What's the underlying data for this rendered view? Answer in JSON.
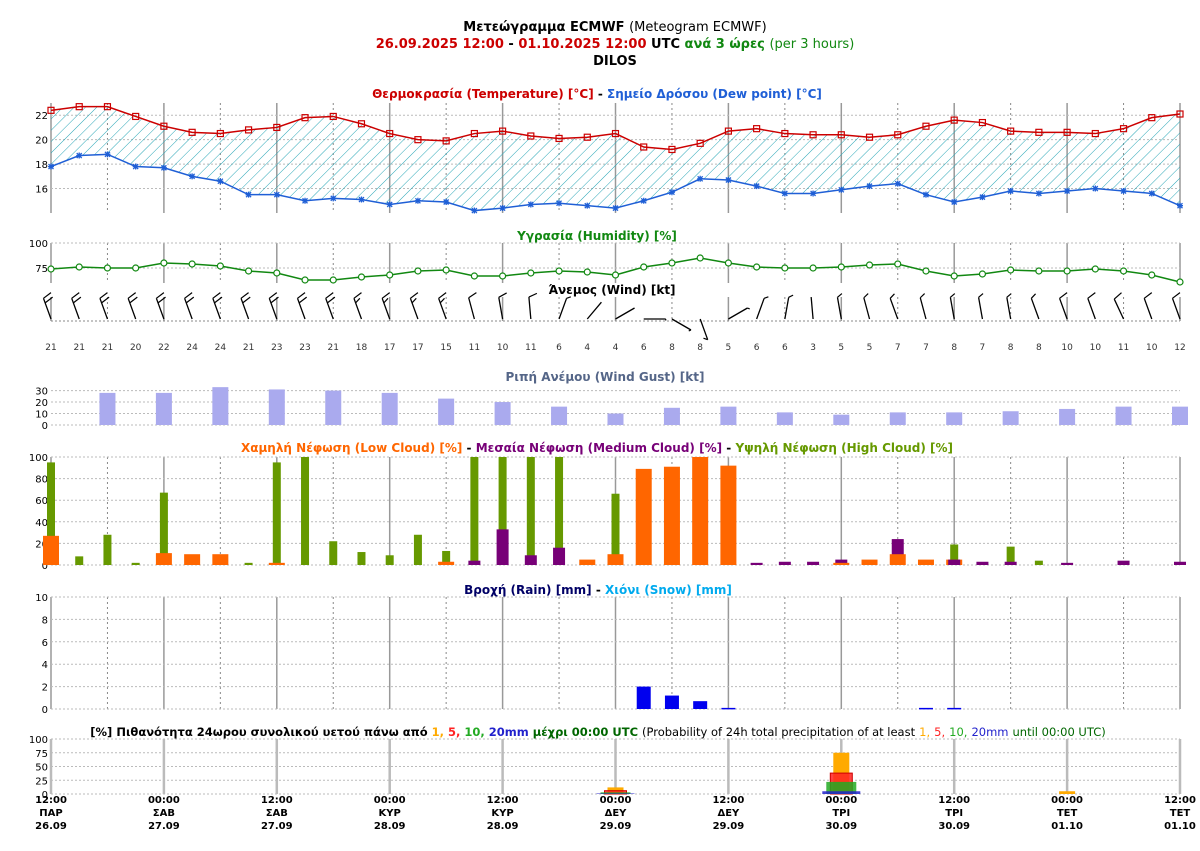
{
  "header": {
    "line1_bold": "Μετεώγραμμα ECMWF",
    "line1_normal": "(Meteogram ECMWF)",
    "line2_start": "26.09.2025 12:00",
    "line2_dash": "-",
    "line2_end": "01.10.2025 12:00",
    "line2_utc": "UTC",
    "line2_every": "ανά 3 ώρες",
    "line2_per": "(per 3 hours)",
    "line3": "DILOS"
  },
  "colors": {
    "temperature": "#cc0000",
    "dewpoint": "#1f5fd6",
    "humidity": "#118811",
    "gust": "#aaaaee",
    "low_cloud": "#ff6600",
    "medium_cloud": "#770077",
    "high_cloud": "#669900",
    "rain": "#0000ee",
    "snow": "#00aaee",
    "p1": "#ffaa00",
    "p5": "#ff2222",
    "p10": "#22aa22",
    "p20": "#2222cc"
  },
  "panels": {
    "temp_title_a": "Θερμοκρασία (Temperature) [°C]",
    "temp_title_sep": "-",
    "temp_title_b": "Σημείο Δρόσου (Dew point) [°C]",
    "hum_title": "Υγρασία (Humidity) [%]",
    "wind_title": "Άνεμος (Wind) [kt]",
    "gust_title": "Ριπή Ανέμου (Wind Gust) [kt]",
    "cloud_title_low": "Χαμηλή Νέφωση (Low Cloud) [%]",
    "cloud_title_sep1": "-",
    "cloud_title_med": "Μεσαία Νέφωση (Medium Cloud) [%]",
    "cloud_title_sep2": "-",
    "cloud_title_high": "Υψηλή Νέφωση (High Cloud) [%]",
    "rain_title_a": "Βροχή (Rain) [mm]",
    "rain_title_sep": "-",
    "rain_title_b": "Χιόνι (Snow) [mm]",
    "prob_title_a": "[%] Πιθανότητα 24ωρου συνολικού υετού πάνω από",
    "prob_v1": "1,",
    "prob_v5": "5,",
    "prob_v10": "10,",
    "prob_v20": "20mm",
    "prob_title_b": "μέχρι 00:00 UTC",
    "prob_title_c": "(Probability of 24h total precipitation of at least",
    "prob_title_d": "until 00:00 UTC)"
  },
  "chart_data": [
    {
      "type": "line",
      "title": "Θερμοκρασία (Temperature) [°C] - Σημείο Δρόσου (Dew point) [°C]",
      "x": [
        "26.09 12:00",
        "26.09 15:00",
        "26.09 18:00",
        "26.09 21:00",
        "27.09 00:00",
        "27.09 03:00",
        "27.09 06:00",
        "27.09 09:00",
        "27.09 12:00",
        "27.09 15:00",
        "27.09 18:00",
        "27.09 21:00",
        "28.09 00:00",
        "28.09 03:00",
        "28.09 06:00",
        "28.09 09:00",
        "28.09 12:00",
        "28.09 15:00",
        "28.09 18:00",
        "28.09 21:00",
        "29.09 00:00",
        "29.09 03:00",
        "29.09 06:00",
        "29.09 09:00",
        "29.09 12:00",
        "29.09 15:00",
        "29.09 18:00",
        "29.09 21:00",
        "30.09 00:00",
        "30.09 03:00",
        "30.09 06:00",
        "30.09 09:00",
        "30.09 12:00",
        "30.09 15:00",
        "30.09 18:00",
        "30.09 21:00",
        "01.10 00:00",
        "01.10 03:00",
        "01.10 06:00",
        "01.10 09:00",
        "01.10 12:00"
      ],
      "series": [
        {
          "name": "Θερμοκρασία (Temperature) [°C]",
          "values": [
            22.4,
            22.7,
            22.7,
            21.9,
            21.1,
            20.6,
            20.5,
            20.8,
            21.0,
            21.8,
            21.9,
            21.3,
            20.5,
            20.0,
            19.9,
            20.5,
            20.7,
            20.3,
            20.1,
            20.2,
            20.5,
            19.4,
            19.2,
            19.7,
            20.7,
            20.9,
            20.5,
            20.4,
            20.4,
            20.2,
            20.4,
            21.1,
            21.6,
            21.4,
            20.7,
            20.6,
            20.6,
            20.5,
            20.9,
            21.8,
            22.1
          ]
        },
        {
          "name": "Σημείο Δρόσου (Dew point) [°C]",
          "values": [
            17.8,
            18.7,
            18.8,
            17.8,
            17.7,
            17.0,
            16.6,
            15.5,
            15.5,
            15.0,
            15.2,
            15.1,
            14.7,
            15.0,
            14.9,
            14.2,
            14.4,
            14.7,
            14.8,
            14.6,
            14.4,
            15.0,
            15.7,
            16.8,
            16.7,
            16.2,
            15.6,
            15.6,
            15.9,
            16.2,
            16.4,
            15.5,
            14.9,
            15.3,
            15.8,
            15.6,
            15.8,
            16.0,
            15.8,
            15.6,
            14.6
          ]
        }
      ],
      "yticks": [
        16,
        18,
        20,
        22
      ],
      "ylim": [
        14,
        23
      ]
    },
    {
      "type": "line",
      "title": "Υγρασία (Humidity) [%]",
      "series": [
        {
          "name": "Υγρασία (Humidity) [%]",
          "values": [
            74,
            76,
            75,
            75,
            80,
            79,
            77,
            72,
            70,
            63,
            63,
            66,
            68,
            72,
            73,
            67,
            67,
            70,
            72,
            71,
            68,
            76,
            80,
            85,
            80,
            76,
            75,
            75,
            76,
            78,
            79,
            72,
            67,
            69,
            73,
            72,
            72,
            74,
            72,
            68,
            61
          ]
        }
      ],
      "yticks": [
        75,
        100
      ],
      "ylim": [
        60,
        100
      ]
    },
    {
      "type": "wind",
      "title": "Άνεμος (Wind) [kt]",
      "speed_labels": [
        "21",
        "21",
        "21",
        "20",
        "22",
        "24",
        "24",
        "21",
        "23",
        "23",
        "21",
        "18",
        "17",
        "17",
        "15",
        "11",
        "10",
        "11",
        "6",
        "4",
        "4",
        "6",
        "8",
        "8",
        "5",
        "6",
        "6",
        "3",
        "5",
        "5",
        "7",
        "7",
        "8",
        "7",
        "8",
        "8",
        "10",
        "10",
        "11",
        "10",
        "12"
      ],
      "direction_deg": [
        340,
        340,
        340,
        340,
        340,
        340,
        340,
        340,
        340,
        340,
        340,
        340,
        340,
        340,
        340,
        345,
        350,
        355,
        20,
        40,
        60,
        90,
        120,
        160,
        60,
        20,
        10,
        355,
        350,
        345,
        340,
        345,
        350,
        350,
        350,
        340,
        340,
        340,
        335,
        340,
        340
      ]
    },
    {
      "type": "bar",
      "title": "Ριπή Ανέμου (Wind Gust) [kt]",
      "values": [
        28,
        28,
        33,
        31,
        30,
        28,
        23,
        20,
        16,
        10,
        15,
        16,
        11,
        9,
        11,
        11,
        12,
        14,
        16,
        16
      ],
      "yticks": [
        0,
        10,
        20,
        30
      ],
      "ylim": [
        0,
        34
      ]
    },
    {
      "type": "bar",
      "title": "Χαμηλή Νέφωση (Low Cloud) [%] - Μεσαία Νέφωση (Medium Cloud) [%] - Υψηλή Νέφωση (High Cloud) [%]",
      "series": [
        {
          "name": "Χαμηλή Νέφωση (Low Cloud) [%]",
          "values": [
            27,
            0,
            0,
            0,
            11,
            10,
            10,
            0,
            2,
            0,
            0,
            0,
            0,
            0,
            3,
            0,
            0,
            0,
            0,
            5,
            10,
            89,
            91,
            100,
            92,
            0,
            0,
            0,
            2,
            5,
            10,
            5,
            5,
            0,
            0,
            0,
            0,
            0,
            0,
            0,
            0
          ]
        },
        {
          "name": "Μεσαία Νέφωση (Medium Cloud) [%]",
          "values": [
            0,
            0,
            0,
            0,
            0,
            0,
            0,
            0,
            0,
            0,
            0,
            0,
            0,
            0,
            0,
            4,
            33,
            9,
            16,
            0,
            0,
            0,
            0,
            0,
            0,
            2,
            3,
            3,
            5,
            0,
            24,
            0,
            5,
            3,
            3,
            0,
            2,
            0,
            4,
            0,
            3
          ]
        },
        {
          "name": "Υψηλή Νέφωση (High Cloud) [%]",
          "values": [
            95,
            8,
            28,
            2,
            67,
            0,
            0,
            2,
            95,
            100,
            22,
            12,
            9,
            28,
            13,
            100,
            100,
            100,
            100,
            0,
            66,
            0,
            0,
            0,
            0,
            0,
            0,
            0,
            0,
            0,
            0,
            0,
            19,
            0,
            17,
            4,
            0,
            0,
            0,
            0,
            0
          ]
        }
      ],
      "yticks": [
        0,
        20,
        40,
        60,
        80,
        100
      ],
      "ylim": [
        0,
        100
      ]
    },
    {
      "type": "bar",
      "title": "Βροχή (Rain) [mm] - Χιόνι (Snow) [mm]",
      "series": [
        {
          "name": "Βροχή (Rain) [mm]",
          "values": [
            0,
            0,
            0,
            0,
            0,
            0,
            0,
            0,
            0,
            0,
            0,
            0,
            0,
            0,
            0,
            0,
            0,
            0,
            0,
            0,
            0,
            2.0,
            1.2,
            0.7,
            0.1,
            0,
            0,
            0,
            0,
            0,
            0,
            0.1,
            0.1,
            0,
            0,
            0,
            0,
            0,
            0,
            0,
            0
          ]
        },
        {
          "name": "Χιόνι (Snow) [mm]",
          "values": [
            0,
            0,
            0,
            0,
            0,
            0,
            0,
            0,
            0,
            0,
            0,
            0,
            0,
            0,
            0,
            0,
            0,
            0,
            0,
            0,
            0,
            0,
            0,
            0,
            0,
            0,
            0,
            0,
            0,
            0,
            0,
            0,
            0,
            0,
            0,
            0,
            0,
            0,
            0,
            0,
            0
          ]
        }
      ],
      "yticks": [
        0,
        2,
        4,
        6,
        8,
        10
      ],
      "ylim": [
        0,
        10
      ]
    },
    {
      "type": "bar",
      "title": "[%] Πιθανότητα 24ωρου συνολικού υετού πάνω από 1, 5, 10, 20mm μέχρι 00:00 UTC (Probability of 24h total precipitation of at least 1, 5, 10, 20mm until 00:00 UTC)",
      "categories": [
        "29.09 00:00",
        "30.09 00:00",
        "01.10 00:00"
      ],
      "series": [
        {
          "name": "1",
          "values": [
            12,
            75,
            5
          ]
        },
        {
          "name": "5",
          "values": [
            6,
            38,
            0
          ]
        },
        {
          "name": "10",
          "values": [
            3,
            22,
            0
          ]
        },
        {
          "name": "20",
          "values": [
            1,
            5,
            0
          ]
        }
      ],
      "yticks": [
        0,
        25,
        50,
        75,
        100
      ],
      "ylim": [
        0,
        100
      ]
    }
  ],
  "x_axis": [
    {
      "time": "12:00",
      "day": "ΠΑΡ",
      "date": "26.09"
    },
    {
      "time": "00:00",
      "day": "ΣΑΒ",
      "date": "27.09"
    },
    {
      "time": "12:00",
      "day": "ΣΑΒ",
      "date": "27.09"
    },
    {
      "time": "00:00",
      "day": "ΚΥΡ",
      "date": "28.09"
    },
    {
      "time": "12:00",
      "day": "ΚΥΡ",
      "date": "28.09"
    },
    {
      "time": "00:00",
      "day": "ΔΕΥ",
      "date": "29.09"
    },
    {
      "time": "12:00",
      "day": "ΔΕΥ",
      "date": "29.09"
    },
    {
      "time": "00:00",
      "day": "ΤΡΙ",
      "date": "30.09"
    },
    {
      "time": "12:00",
      "day": "ΤΡΙ",
      "date": "30.09"
    },
    {
      "time": "00:00",
      "day": "ΤΕΤ",
      "date": "01.10"
    },
    {
      "time": "12:00",
      "day": "ΤΕΤ",
      "date": "01.10"
    }
  ]
}
